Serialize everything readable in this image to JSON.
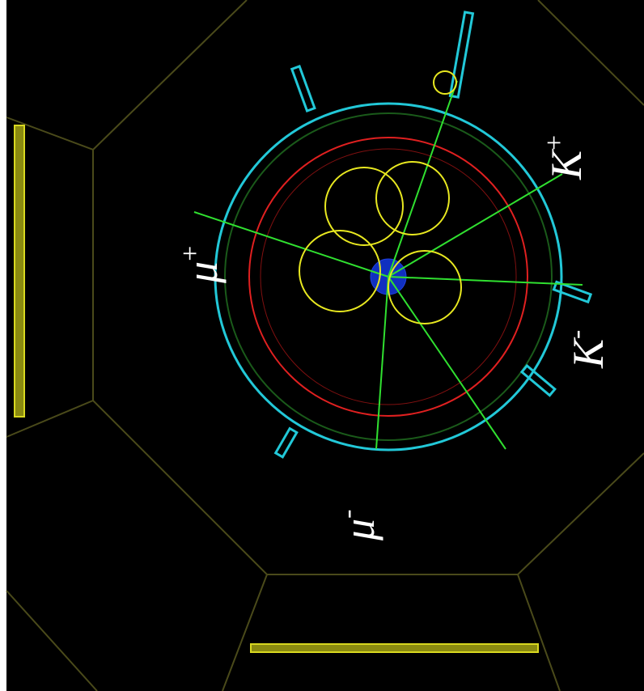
{
  "labels": [
    {
      "symbol": "μ",
      "charge": "+"
    },
    {
      "symbol": "μ",
      "charge": "-"
    },
    {
      "symbol": "K",
      "charge": "+"
    },
    {
      "symbol": "K",
      "charge": "-"
    }
  ]
}
